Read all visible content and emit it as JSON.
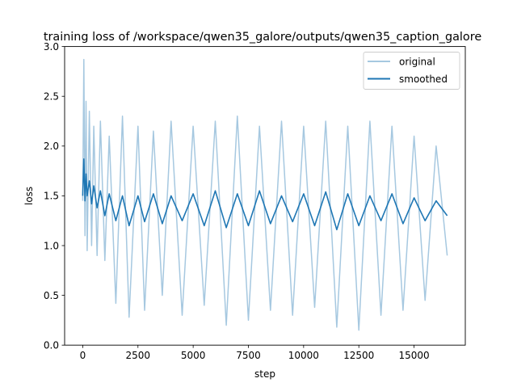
{
  "chart_data": {
    "type": "line",
    "title": "training loss of /workspace/qwen35_galore/outputs/qwen35_caption_galore",
    "xlabel": "step",
    "ylabel": "loss",
    "xlim": [
      -820,
      17320
    ],
    "ylim": [
      0.0,
      3.0
    ],
    "x_ticks": [
      0,
      2500,
      5000,
      7500,
      10000,
      12500,
      15000
    ],
    "y_ticks": [
      0.0,
      0.5,
      1.0,
      1.5,
      2.0,
      2.5,
      3.0
    ],
    "x_tick_labels": [
      "0",
      "2500",
      "5000",
      "7500",
      "10000",
      "12500",
      "15000"
    ],
    "y_tick_labels": [
      "0.0",
      "0.5",
      "1.0",
      "1.5",
      "2.0",
      "2.5",
      "3.0"
    ],
    "legend_position": "top-right",
    "grid": false,
    "series": [
      {
        "name": "original",
        "color": "#a6c8e0",
        "x": [
          0,
          50,
          100,
          150,
          200,
          300,
          400,
          500,
          650,
          800,
          1000,
          1200,
          1500,
          1800,
          2100,
          2500,
          2800,
          3200,
          3600,
          4000,
          4500,
          5000,
          5500,
          6000,
          6500,
          7000,
          7500,
          8000,
          8500,
          9000,
          9500,
          10000,
          10500,
          11000,
          11500,
          12000,
          12500,
          13000,
          13500,
          14000,
          14500,
          15000,
          15500,
          16000,
          16500
        ],
        "y": [
          1.45,
          2.87,
          1.1,
          2.45,
          0.95,
          2.35,
          1.0,
          2.2,
          0.9,
          2.25,
          0.85,
          2.1,
          0.42,
          2.3,
          0.28,
          2.2,
          0.35,
          2.15,
          0.5,
          2.25,
          0.3,
          2.2,
          0.4,
          2.25,
          0.2,
          2.3,
          0.25,
          2.2,
          0.35,
          2.25,
          0.3,
          2.2,
          0.38,
          2.25,
          0.18,
          2.2,
          0.15,
          2.25,
          0.3,
          2.2,
          0.35,
          2.1,
          0.45,
          2.0,
          0.9
        ]
      },
      {
        "name": "smoothed",
        "color": "#1f77b4",
        "x": [
          0,
          50,
          100,
          150,
          200,
          300,
          400,
          500,
          650,
          800,
          1000,
          1200,
          1500,
          1800,
          2100,
          2500,
          2800,
          3200,
          3600,
          4000,
          4500,
          5000,
          5500,
          6000,
          6500,
          7000,
          7500,
          8000,
          8500,
          9000,
          9500,
          10000,
          10500,
          11000,
          11500,
          12000,
          12500,
          13000,
          13500,
          14000,
          14500,
          15000,
          15500,
          16000,
          16500
        ],
        "y": [
          1.5,
          1.87,
          1.45,
          1.72,
          1.5,
          1.65,
          1.42,
          1.6,
          1.38,
          1.55,
          1.3,
          1.52,
          1.25,
          1.5,
          1.2,
          1.5,
          1.24,
          1.52,
          1.22,
          1.5,
          1.25,
          1.52,
          1.2,
          1.55,
          1.18,
          1.52,
          1.2,
          1.55,
          1.22,
          1.5,
          1.24,
          1.52,
          1.2,
          1.54,
          1.16,
          1.52,
          1.2,
          1.5,
          1.25,
          1.52,
          1.22,
          1.48,
          1.25,
          1.45,
          1.3
        ]
      }
    ]
  }
}
